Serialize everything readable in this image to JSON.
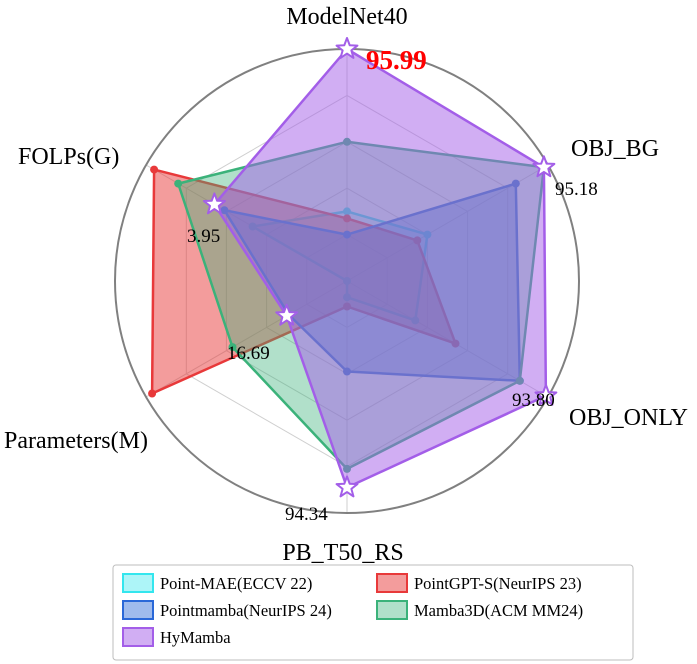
{
  "chart_data": {
    "type": "radar",
    "axes": [
      "ModelNet40",
      "OBJ_BG",
      "OBJ_ONLY",
      "PB_T50_RS",
      "Parameters(M)",
      "FOLPs(G)"
    ],
    "grid": true,
    "legend_position": "bottom",
    "series": [
      {
        "name": "Point-MAE(ECCV 22)",
        "color": "#33e6ee",
        "fill_opacity": 0.22,
        "values": [
          0.3,
          0.4,
          0.34,
          0.07,
          0.0,
          0.47
        ]
      },
      {
        "name": "PointGPT-S(NeurIPS 23)",
        "color": "#e8393a",
        "fill_opacity": 0.5,
        "values": [
          0.27,
          0.35,
          0.54,
          0.11,
          0.97,
          0.96
        ]
      },
      {
        "name": "Pointmamba(NeurIPS 24)",
        "color": "#2a68d8",
        "fill_opacity": 0.45,
        "values": [
          0.2,
          0.84,
          0.86,
          0.39,
          0.29,
          0.61
        ]
      },
      {
        "name": "Mamba3D(ACM MM24)",
        "color": "#3bb27a",
        "fill_opacity": 0.4,
        "values": [
          0.6,
          0.98,
          0.86,
          0.81,
          0.57,
          0.84
        ]
      },
      {
        "name": "HyMamba",
        "color": "#a35ee8",
        "fill_opacity": 0.5,
        "star_markers": true,
        "values": [
          1.0,
          0.98,
          0.99,
          0.89,
          0.3,
          0.66
        ]
      }
    ],
    "annotations": [
      {
        "axis": "ModelNet40",
        "text": "95.99",
        "highlight": true
      },
      {
        "axis": "OBJ_BG",
        "text": "95.18"
      },
      {
        "axis": "OBJ_ONLY",
        "text": "93.80"
      },
      {
        "axis": "PB_T50_RS",
        "text": "94.34"
      },
      {
        "axis": "Parameters(M)",
        "text": "16.69"
      },
      {
        "axis": "FOLPs(G)",
        "text": "3.95"
      }
    ]
  }
}
